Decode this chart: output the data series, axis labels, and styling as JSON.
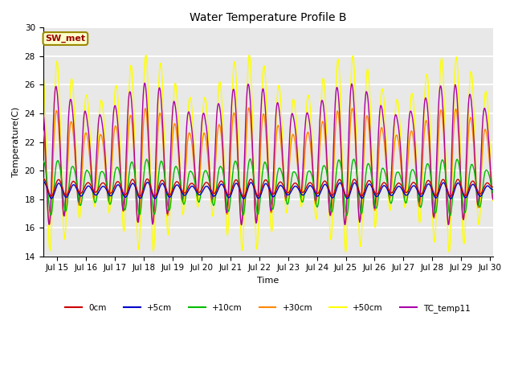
{
  "title": "Water Temperature Profile B",
  "xlabel": "Time",
  "ylabel": "Temperature(C)",
  "ylim": [
    14,
    30
  ],
  "xlim_days": [
    14.5,
    30.1
  ],
  "xtick_labels": [
    "Jul 15",
    "Jul 16",
    "Jul 17",
    "Jul 18",
    "Jul 19",
    "Jul 20",
    "Jul 21",
    "Jul 22",
    "Jul 23",
    "Jul 24",
    "Jul 25",
    "Jul 26",
    "Jul 27",
    "Jul 28",
    "Jul 29",
    "Jul 30"
  ],
  "xtick_positions": [
    15,
    16,
    17,
    18,
    19,
    20,
    21,
    22,
    23,
    24,
    25,
    26,
    27,
    28,
    29,
    30
  ],
  "series_colors": {
    "0cm": "#cc0000",
    "+5cm": "#0000cc",
    "+10cm": "#00bb00",
    "+30cm": "#ff8800",
    "+50cm": "#ffff00",
    "TC_temp11": "#aa00aa"
  },
  "legend_order": [
    "0cm",
    "+5cm",
    "+10cm",
    "+30cm",
    "+50cm",
    "TC_temp11"
  ],
  "annotation_text": "SW_met",
  "annotation_color": "#990000",
  "annotation_bg": "#ffffcc",
  "annotation_border": "#998800",
  "background_color": "#e8e8e8",
  "grid_color": "#ffffff",
  "n_points": 960,
  "figsize": [
    6.4,
    4.8
  ],
  "dpi": 100
}
